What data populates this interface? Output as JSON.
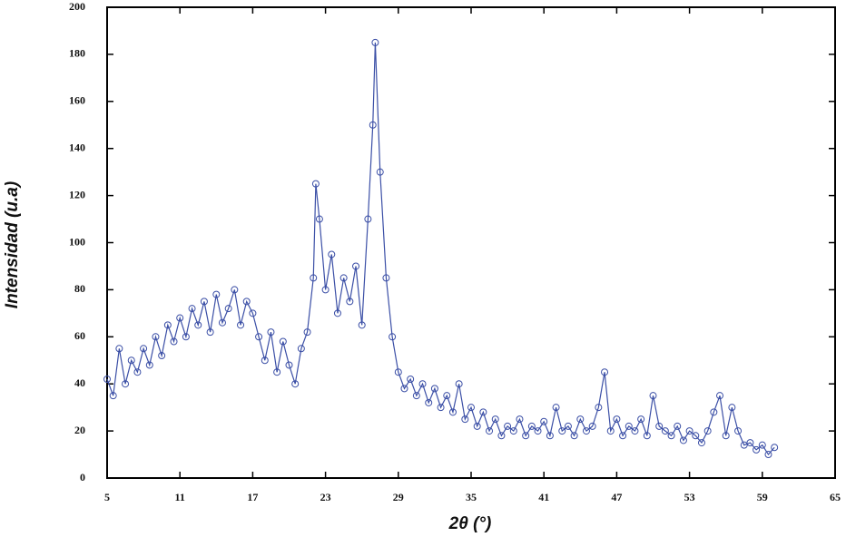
{
  "chart_data": {
    "type": "line",
    "x_label": "2θ (°)",
    "y_label": "Intensidad (u.a)",
    "x": [
      5,
      5.5,
      6,
      6.5,
      7,
      7.5,
      8,
      8.5,
      9,
      9.5,
      10,
      10.5,
      11,
      11.5,
      12,
      12.5,
      13,
      13.5,
      14,
      14.5,
      15,
      15.5,
      16,
      16.5,
      17,
      17.5,
      18,
      18.5,
      19,
      19.5,
      20,
      20.5,
      21,
      21.5,
      22,
      22.2,
      22.5,
      23,
      23.5,
      24,
      24.5,
      25,
      25.5,
      26,
      26.5,
      26.9,
      27.1,
      27.5,
      28,
      28.5,
      29,
      29.5,
      30,
      30.5,
      31,
      31.5,
      32,
      32.5,
      33,
      33.5,
      34,
      34.5,
      35,
      35.5,
      36,
      36.5,
      37,
      37.5,
      38,
      38.5,
      39,
      39.5,
      40,
      40.5,
      41,
      41.5,
      42,
      42.5,
      43,
      43.5,
      44,
      44.5,
      45,
      45.5,
      46,
      46.5,
      47,
      47.5,
      48,
      48.5,
      49,
      49.5,
      50,
      50.5,
      51,
      51.5,
      52,
      52.5,
      53,
      53.5,
      54,
      54.5,
      55,
      55.5,
      56,
      56.5,
      57,
      57.5,
      58,
      58.5,
      59,
      59.5,
      60
    ],
    "series": [
      {
        "color": "#3b4fa6",
        "values": [
          42,
          35,
          55,
          40,
          50,
          45,
          55,
          48,
          60,
          52,
          65,
          58,
          68,
          60,
          72,
          65,
          75,
          62,
          78,
          66,
          72,
          80,
          65,
          75,
          70,
          60,
          50,
          62,
          45,
          58,
          48,
          40,
          55,
          62,
          85,
          125,
          110,
          80,
          95,
          70,
          85,
          75,
          90,
          65,
          110,
          150,
          185,
          130,
          85,
          60,
          45,
          38,
          42,
          35,
          40,
          32,
          38,
          30,
          35,
          28,
          40,
          25,
          30,
          22,
          28,
          20,
          25,
          18,
          22,
          20,
          25,
          18,
          22,
          20,
          24,
          18,
          30,
          20,
          22,
          18,
          25,
          20,
          22,
          30,
          45,
          20,
          25,
          18,
          22,
          20,
          25,
          18,
          35,
          22,
          20,
          18,
          22,
          16,
          20,
          18,
          15,
          20,
          28,
          35,
          18,
          30,
          20,
          14,
          15,
          12,
          14,
          10,
          13
        ]
      }
    ],
    "xlim": [
      5,
      65
    ],
    "xticks": [
      5,
      11,
      17,
      23,
      29,
      35,
      41,
      47,
      53,
      59,
      65
    ],
    "ylim": [
      0,
      200
    ],
    "yticks": [
      0,
      20,
      40,
      60,
      80,
      100,
      120,
      140,
      160,
      180,
      200
    ]
  }
}
